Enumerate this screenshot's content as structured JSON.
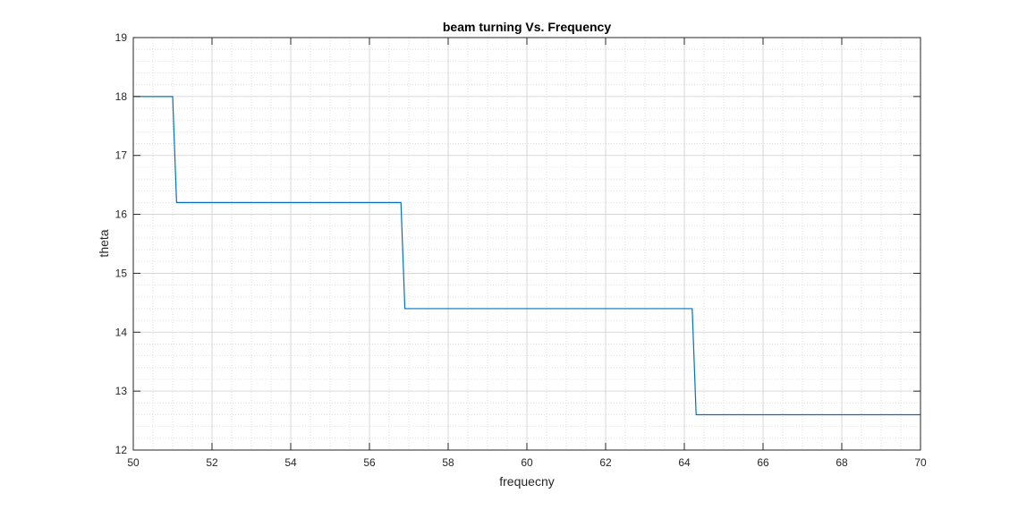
{
  "chart_data": {
    "type": "line",
    "title": "beam turning Vs. Frequency",
    "xlabel": "frequecny",
    "ylabel": "theta",
    "xlim": [
      50,
      70
    ],
    "ylim": [
      12,
      19
    ],
    "xticks": [
      50,
      52,
      54,
      56,
      58,
      60,
      62,
      64,
      66,
      68,
      70
    ],
    "yticks": [
      12,
      13,
      14,
      15,
      16,
      17,
      18,
      19
    ],
    "grid": true,
    "minor_grid": true,
    "series": [
      {
        "color": "#0072bd",
        "x": [
          50,
          51.0,
          51.1,
          56.8,
          56.9,
          64.2,
          64.3,
          70
        ],
        "y": [
          18.0,
          18.0,
          16.2,
          16.2,
          14.4,
          14.4,
          12.6,
          12.6
        ]
      }
    ]
  }
}
